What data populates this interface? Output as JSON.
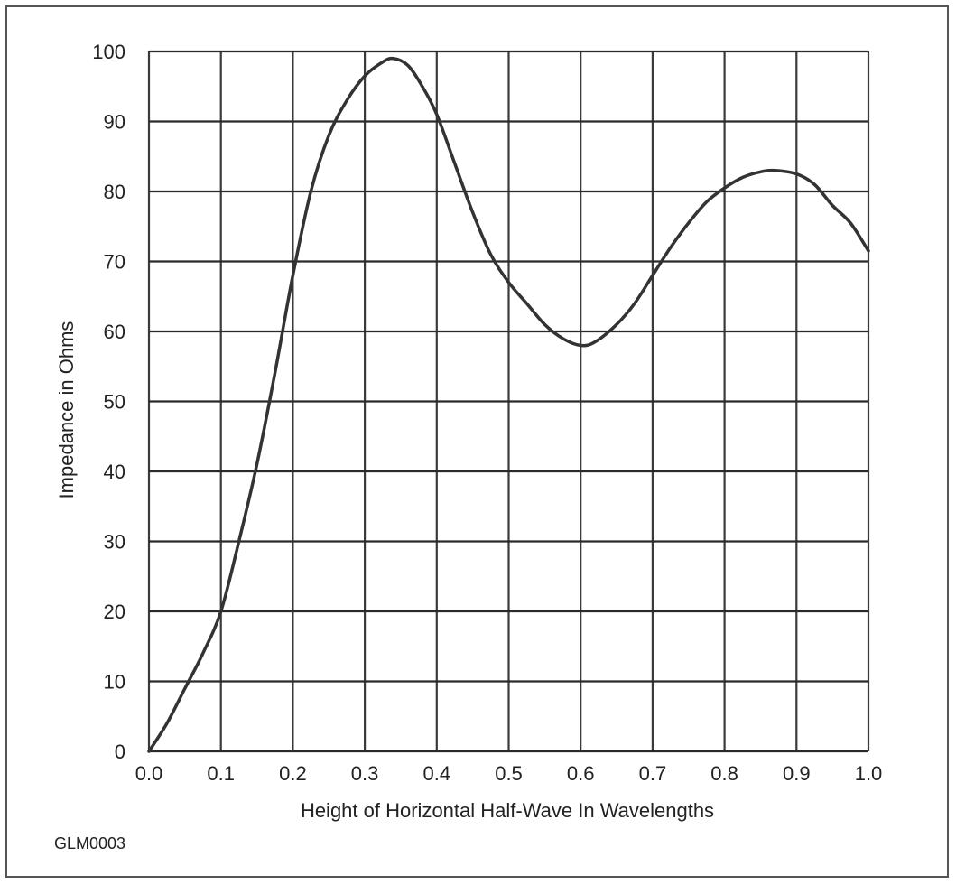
{
  "chart_data": {
    "type": "line",
    "title": "",
    "xlabel": "Height of Horizontal Half-Wave In Wavelengths",
    "ylabel": "Impedance in Ohms",
    "xlim": [
      0.0,
      1.0
    ],
    "ylim": [
      0,
      100
    ],
    "grid": true,
    "x_ticks": [
      "0.0",
      "0.1",
      "0.2",
      "0.3",
      "0.4",
      "0.5",
      "0.6",
      "0.7",
      "0.8",
      "0.9",
      "1.0"
    ],
    "y_ticks": [
      "0",
      "10",
      "20",
      "30",
      "40",
      "50",
      "60",
      "70",
      "80",
      "90",
      "100"
    ],
    "series": [
      {
        "x": [
          0.0,
          0.025,
          0.05,
          0.075,
          0.1,
          0.125,
          0.15,
          0.175,
          0.2,
          0.225,
          0.25,
          0.275,
          0.3,
          0.325,
          0.34,
          0.36,
          0.38,
          0.4,
          0.425,
          0.45,
          0.475,
          0.5,
          0.525,
          0.55,
          0.575,
          0.6,
          0.62,
          0.65,
          0.675,
          0.7,
          0.725,
          0.75,
          0.775,
          0.8,
          0.825,
          0.85,
          0.87,
          0.9,
          0.925,
          0.95,
          0.975,
          1.0
        ],
        "y": [
          0,
          4,
          9,
          14,
          20,
          30,
          41,
          54,
          68,
          80,
          88,
          93,
          96.5,
          98.5,
          99,
          98,
          95,
          91,
          84,
          77,
          71,
          67,
          64,
          61,
          59,
          58,
          58.5,
          61,
          64,
          68,
          72,
          75.5,
          78.5,
          80.5,
          82,
          82.8,
          83,
          82.5,
          81,
          78,
          75.5,
          71.5
        ]
      }
    ],
    "line_color": "#333333"
  },
  "figure_code": "GLM0003"
}
